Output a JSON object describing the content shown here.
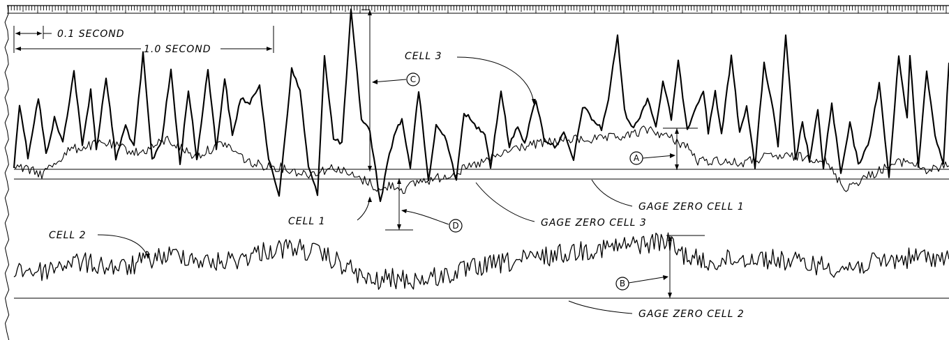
{
  "timing": {
    "short_label": "0.1 SECOND",
    "long_label": "1.0 SECOND"
  },
  "labels": {
    "cell1": "CELL 1",
    "cell2": "CELL 2",
    "cell3": "CELL 3",
    "gage_zero_cell1": "GAGE ZERO CELL 1",
    "gage_zero_cell2": "GAGE ZERO CELL 2",
    "gage_zero_cell3": "GAGE ZERO CELL 3"
  },
  "markers": {
    "a": "A",
    "b": "B",
    "c": "C",
    "d": "D"
  },
  "colors": {
    "ink": "#000000",
    "paper": "#ffffff"
  }
}
